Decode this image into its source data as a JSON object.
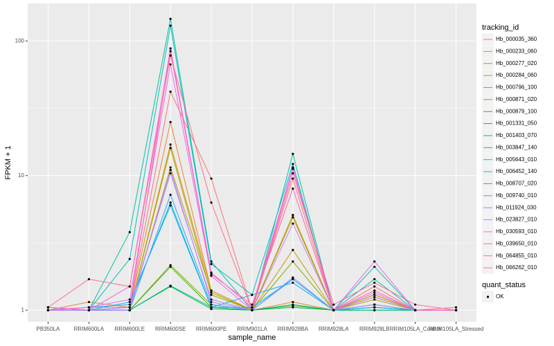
{
  "chart_data": {
    "type": "line",
    "x_label": "sample_name",
    "y_label": "FPKM + 1",
    "categories": [
      "PB350LA",
      "RRIM600LA",
      "RRIM600LE",
      "RRIM600SE",
      "RRIM600PE",
      "RRIM901LA",
      "RRIM928BA",
      "RRIM928LA",
      "RRIM928LB",
      "RRIM105LA_Control",
      "RRIM105LA_Stressed"
    ],
    "log_y": true,
    "ylim": [
      0.82,
      190
    ],
    "yticks": [
      1,
      10,
      100
    ],
    "grid": true,
    "legend_title": "tracking_id",
    "legend_position": "right",
    "point_legend_title": "quant_status",
    "point_legend": [
      "OK"
    ],
    "point_color": "#000000",
    "series": [
      {
        "name": "Hb_000035_360",
        "color": "#F8766D",
        "values": [
          1.05,
          1.0,
          1.05,
          42,
          9.5,
          1.0,
          9.5,
          1.0,
          1.5,
          1.0,
          1.05
        ]
      },
      {
        "name": "Hb_000233_060",
        "color": "#EA8331",
        "values": [
          1.0,
          1.15,
          1.05,
          25,
          1.4,
          1.0,
          1.15,
          1.0,
          1.1,
          1.0,
          1.0
        ]
      },
      {
        "name": "Hb_000277_020",
        "color": "#D89000",
        "values": [
          1.0,
          1.0,
          1.0,
          17,
          1.4,
          1.0,
          5.1,
          1.0,
          1.3,
          1.0,
          1.0
        ]
      },
      {
        "name": "Hb_000284_060",
        "color": "#C09B00",
        "values": [
          1.0,
          1.0,
          1.0,
          11.5,
          1.35,
          1.0,
          2.8,
          1.0,
          1.2,
          1.0,
          1.0
        ]
      },
      {
        "name": "Hb_000796_100",
        "color": "#A3A500",
        "values": [
          1.0,
          1.0,
          1.0,
          16,
          1.3,
          1.0,
          4.9,
          1.0,
          1.3,
          1.0,
          1.0
        ]
      },
      {
        "name": "Hb_000871_020",
        "color": "#7CAE00",
        "values": [
          1.0,
          1.0,
          1.0,
          2.16,
          1.1,
          1.0,
          2.3,
          1.0,
          1.25,
          1.0,
          1.0
        ]
      },
      {
        "name": "Hb_000879_100",
        "color": "#39B600",
        "values": [
          1.0,
          1.0,
          1.0,
          2.1,
          1.05,
          1.0,
          1.08,
          1.0,
          1.05,
          1.0,
          1.0
        ]
      },
      {
        "name": "Hb_001331_050",
        "color": "#00BB4E",
        "values": [
          1.0,
          1.0,
          1.0,
          1.5,
          1.02,
          1.0,
          1.05,
          1.0,
          1.0,
          1.0,
          1.0
        ]
      },
      {
        "name": "Hb_001403_070",
        "color": "#00BF7D",
        "values": [
          1.0,
          1.0,
          1.0,
          1.52,
          1.05,
          1.0,
          1.1,
          1.0,
          1.0,
          1.0,
          1.0
        ]
      },
      {
        "name": "Hb_003847_140",
        "color": "#00C1A3",
        "values": [
          1.0,
          1.0,
          3.8,
          146,
          2.3,
          1.0,
          14.5,
          1.0,
          2.1,
          1.0,
          1.0
        ]
      },
      {
        "name": "Hb_005643_010",
        "color": "#00BFC4",
        "values": [
          1.05,
          1.0,
          2.4,
          130,
          2.2,
          1.3,
          12.2,
          1.0,
          1.7,
          1.0,
          1.0
        ]
      },
      {
        "name": "Hb_006452_140",
        "color": "#00BAE0",
        "values": [
          1.0,
          1.05,
          1.1,
          6.3,
          1.05,
          1.05,
          1.7,
          1.0,
          1.05,
          1.0,
          1.0
        ]
      },
      {
        "name": "Hb_008707_020",
        "color": "#00B0F6",
        "values": [
          1.0,
          1.0,
          1.15,
          6.0,
          1.05,
          1.3,
          1.6,
          1.0,
          1.05,
          1.0,
          1.0
        ]
      },
      {
        "name": "Hb_009740_010",
        "color": "#35A2FF",
        "values": [
          1.0,
          1.0,
          1.0,
          7.2,
          1.1,
          1.0,
          1.7,
          1.0,
          1.1,
          1.0,
          1.0
        ]
      },
      {
        "name": "Hb_011924_030",
        "color": "#9590FF",
        "values": [
          1.0,
          1.0,
          1.05,
          10.4,
          1.2,
          1.0,
          1.75,
          1.0,
          1.1,
          1.0,
          1.0
        ]
      },
      {
        "name": "Hb_023827_010",
        "color": "#C77CFF",
        "values": [
          1.0,
          1.0,
          1.0,
          11,
          1.15,
          1.0,
          4.4,
          1.0,
          1.25,
          1.0,
          1.0
        ]
      },
      {
        "name": "Hb_030593_010",
        "color": "#E76BF3",
        "values": [
          1.0,
          1.05,
          1.2,
          67,
          1.8,
          1.0,
          11.2,
          1.0,
          2.3,
          1.0,
          1.0
        ]
      },
      {
        "name": "Hb_039650_010",
        "color": "#FA62DB",
        "values": [
          1.05,
          1.0,
          1.5,
          88,
          1.9,
          1.05,
          11.5,
          1.0,
          1.35,
          1.0,
          1.0
        ]
      },
      {
        "name": "Hb_064855_010",
        "color": "#FF62BC",
        "values": [
          1.0,
          1.05,
          1.05,
          84,
          1.85,
          1.1,
          8.0,
          1.0,
          1.4,
          1.0,
          1.0
        ]
      },
      {
        "name": "Hb_066262_010",
        "color": "#FF6C91",
        "values": [
          1.05,
          1.7,
          1.5,
          78,
          6.3,
          1.0,
          10.4,
          1.1,
          1.6,
          1.1,
          1.0
        ]
      }
    ]
  }
}
